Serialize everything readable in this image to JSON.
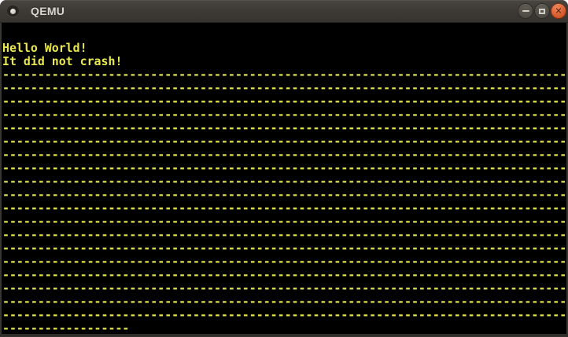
{
  "window": {
    "title": "QEMU",
    "controls": {
      "minimize_label": "minimize",
      "maximize_label": "maximize",
      "close_label": "close",
      "close_glyph": "✕"
    }
  },
  "screen": {
    "foreground": "#e9e94f",
    "background": "#000000",
    "lines": [
      "Hello World!",
      "It did not crash!",
      "--------------------------------------------------------------------------------",
      "--------------------------------------------------------------------------------",
      "--------------------------------------------------------------------------------",
      "--------------------------------------------------------------------------------",
      "--------------------------------------------------------------------------------",
      "--------------------------------------------------------------------------------",
      "--------------------------------------------------------------------------------",
      "--------------------------------------------------------------------------------",
      "--------------------------------------------------------------------------------",
      "--------------------------------------------------------------------------------",
      "--------------------------------------------------------------------------------",
      "--------------------------------------------------------------------------------",
      "--------------------------------------------------------------------------------",
      "--------------------------------------------------------------------------------",
      "--------------------------------------------------------------------------------",
      "--------------------------------------------------------------------------------",
      "--------------------------------------------------------------------------------",
      "--------------------------------------------------------------------------------",
      "--------------------------------------------------------------------------------",
      "------------------"
    ]
  }
}
